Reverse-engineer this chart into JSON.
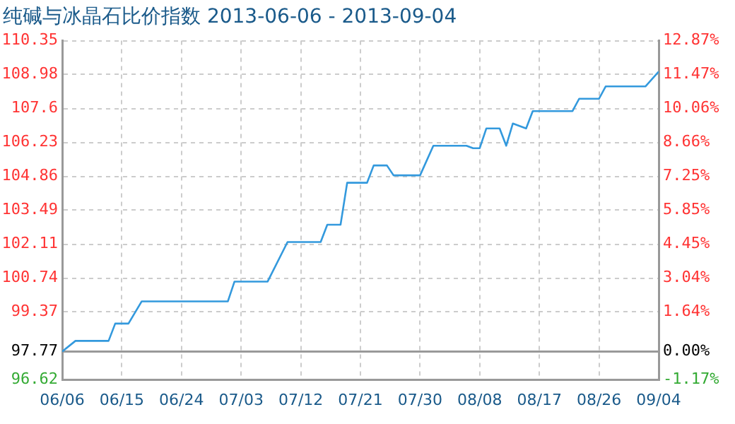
{
  "chart_data": {
    "type": "line",
    "title": "纯碱与冰晶石比价指数 2013-06-06 - 2013-09-04",
    "x": [
      "2013-06-06",
      "2013-06-08",
      "2013-06-13",
      "2013-06-14",
      "2013-06-16",
      "2013-06-18",
      "2013-07-01",
      "2013-07-02",
      "2013-07-07",
      "2013-07-10",
      "2013-07-15",
      "2013-07-16",
      "2013-07-18",
      "2013-07-19",
      "2013-07-22",
      "2013-07-23",
      "2013-07-25",
      "2013-07-26",
      "2013-07-30",
      "2013-08-01",
      "2013-08-06",
      "2013-08-07",
      "2013-08-08",
      "2013-08-09",
      "2013-08-11",
      "2013-08-12",
      "2013-08-13",
      "2013-08-14",
      "2013-08-15",
      "2013-08-16",
      "2013-08-22",
      "2013-08-23",
      "2013-08-26",
      "2013-08-27",
      "2013-09-02",
      "2013-09-04"
    ],
    "series": [
      {
        "color": "#3399dd",
        "values": [
          97.77,
          98.2,
          98.2,
          98.9,
          98.9,
          99.8,
          99.8,
          100.6,
          100.6,
          102.2,
          102.2,
          102.9,
          102.9,
          104.6,
          104.6,
          105.3,
          105.3,
          104.9,
          104.9,
          106.1,
          106.1,
          106.0,
          106.0,
          106.8,
          106.8,
          106.1,
          107.0,
          106.9,
          106.8,
          107.5,
          107.5,
          108.0,
          108.0,
          108.5,
          108.5,
          109.1
        ]
      }
    ],
    "xlim": [
      "2013-06-06",
      "2013-09-04"
    ],
    "xticks": [
      {
        "value": "2013-06-06",
        "label": "06/06"
      },
      {
        "value": "2013-06-15",
        "label": "06/15"
      },
      {
        "value": "2013-06-24",
        "label": "06/24"
      },
      {
        "value": "2013-07-03",
        "label": "07/03"
      },
      {
        "value": "2013-07-12",
        "label": "07/12"
      },
      {
        "value": "2013-07-21",
        "label": "07/21"
      },
      {
        "value": "2013-07-30",
        "label": "07/30"
      },
      {
        "value": "2013-08-08",
        "label": "08/08"
      },
      {
        "value": "2013-08-17",
        "label": "08/17"
      },
      {
        "value": "2013-08-26",
        "label": "08/26"
      },
      {
        "value": "2013-09-04",
        "label": "09/04"
      }
    ],
    "ylim": [
      96.62,
      110.35
    ],
    "yticks": [
      96.62,
      97.77,
      99.37,
      100.74,
      102.11,
      103.49,
      104.86,
      106.23,
      107.6,
      108.98,
      110.35
    ],
    "y2lim": [
      -1.17,
      12.87
    ],
    "y2ticks": [
      {
        "value": -1.17,
        "label": "-1.17%"
      },
      {
        "value": 0,
        "label": "0.00%"
      },
      {
        "value": 1.64,
        "label": "1.64%"
      },
      {
        "value": 3.04,
        "label": "3.04%"
      },
      {
        "value": 4.45,
        "label": "4.45%"
      },
      {
        "value": 5.85,
        "label": "5.85%"
      },
      {
        "value": 7.25,
        "label": "7.25%"
      },
      {
        "value": 8.66,
        "label": "8.66%"
      },
      {
        "value": 10.06,
        "label": "10.06%"
      },
      {
        "value": 11.47,
        "label": "11.47%"
      },
      {
        "value": 12.87,
        "label": "12.87%"
      }
    ],
    "ref_lines": [
      {
        "axis": "y",
        "value": 97.77,
        "color": "#999999"
      }
    ],
    "grid": true,
    "legend": false,
    "marker": "none",
    "line_style": "solid"
  }
}
